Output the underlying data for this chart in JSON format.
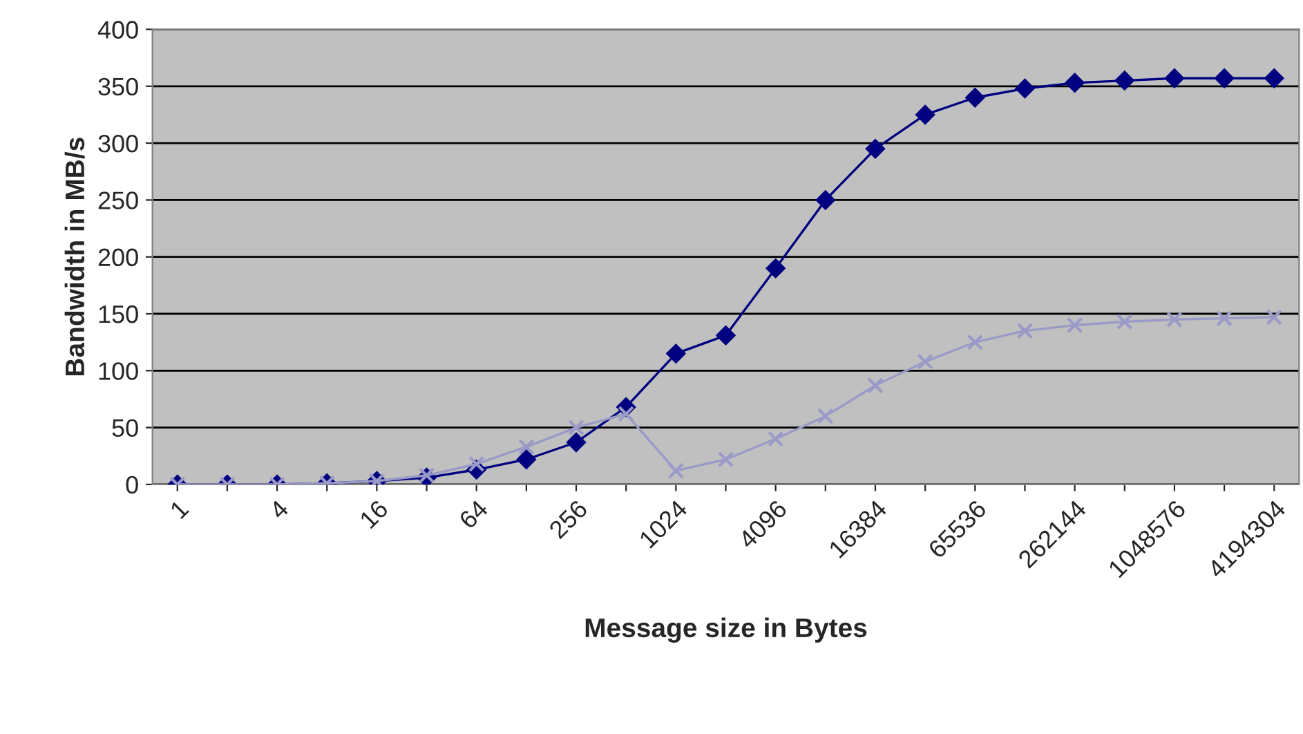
{
  "chart_data": {
    "type": "line",
    "xlabel": "Message size in Bytes",
    "ylabel": "Bandwidth in MB/s",
    "categories": [
      "1",
      null,
      "4",
      null,
      "16",
      null,
      "64",
      null,
      "256",
      null,
      "1024",
      null,
      "4096",
      null,
      "16384",
      null,
      "65536",
      null,
      "262144",
      null,
      "1048576",
      null,
      "4194304"
    ],
    "series": [
      {
        "color": "#000080",
        "marker": "diamond",
        "values": [
          0,
          0,
          0,
          1,
          3,
          6,
          13,
          22,
          37,
          68,
          115,
          131,
          190,
          250,
          295,
          325,
          340,
          348,
          353,
          355,
          357,
          357,
          357
        ]
      },
      {
        "color": "#9a9ac8",
        "marker": "cross",
        "values": [
          0,
          0,
          0,
          1,
          3,
          8,
          18,
          33,
          50,
          62,
          12,
          22,
          40,
          60,
          87,
          108,
          125,
          135,
          140,
          143,
          145,
          146,
          147
        ]
      }
    ],
    "ylim": [
      0,
      400
    ],
    "yticks": [
      0,
      50,
      100,
      150,
      200,
      250,
      300,
      350,
      400
    ],
    "grid": "y"
  }
}
